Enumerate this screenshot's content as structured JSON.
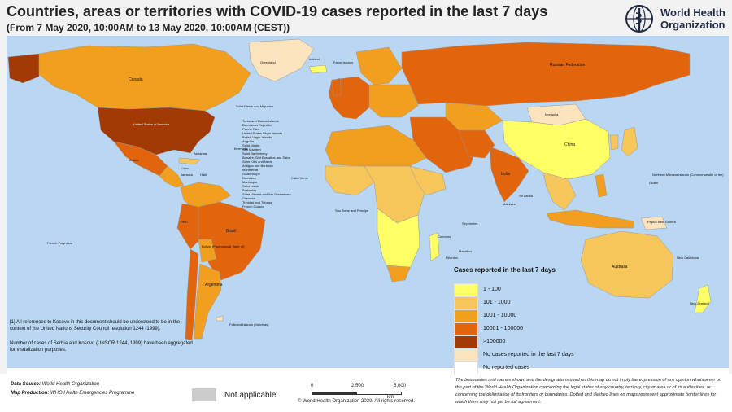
{
  "header": {
    "title": "Countries, areas or territories with COVID-19 cases reported in the last 7 days",
    "subtitle": "(From 7 May 2020, 10:00AM  to 13 May 2020, 10:00AM (CEST))"
  },
  "logo": {
    "line1": "World Health",
    "line2": "Organization"
  },
  "colors": {
    "ocean": "#b9d6f2",
    "range_1_100": "#ffff66",
    "range_101_1000": "#f7c65a",
    "range_1001_10000": "#f29e1f",
    "range_10001_100000": "#e2640c",
    "range_over_100000": "#a33a06",
    "no_reported_cases_7d": "#fbe3bd",
    "no_reported_cases": "#ffffff",
    "not_applicable": "#cccccc"
  },
  "map_labels": {
    "greenland": "Greenland",
    "canada": "Canada",
    "usa": "United States of America",
    "mexico": "Mexico",
    "russia": "Russian Federation",
    "mongolia": "Mongolia",
    "china": "China",
    "india": "India",
    "brazil": "Brazil",
    "argentina": "Argentina",
    "peru": "Peru",
    "bolivia": "Bolivia (Plurinational State of)",
    "australia": "Australia",
    "new_zealand": "New Zealand",
    "iceland": "Iceland",
    "faroe": "Faroe Islands",
    "saint_pierre": "Saint Pierre and Miquelon",
    "french_polynesia": "French Polynesia",
    "falkland": "Falkland Islands (Malvinas)",
    "nmi": "Northern Mariana Islands (Commonwealth of the)",
    "guam": "Guam",
    "png": "Papua New Guinea",
    "new_caledonia": "New Caledonia",
    "cabo_verde": "Cabo Verde",
    "sao_tome": "Sao Tome and Principe",
    "seychelles": "Seychelles",
    "comoros": "Comoros",
    "mauritius": "Mauritius",
    "reunion": "Réunion",
    "maldives": "Maldives",
    "sri_lanka": "Sri Lanka",
    "bermuda": "Bermuda",
    "bahamas": "Bahamas",
    "cuba": "Cuba",
    "jamaica": "Jamaica",
    "haiti": "Haiti",
    "caribbean_list": "Turks and Caicos Islands\nDominican Republic\nPuerto Rico\nUnited States Virgin Islands\nBritish Virgin Islands\nAnguilla\nSaint Martin\nSint Maarten\nSaint Barthélemy\nBonaire, Sint Eustatius and Saba\nSaint Kitts and Nevis\nAntigua and Barbuda\nMontserrat\nGuadeloupe\nDominica\nMartinique\nSaint Lucia\nBarbados\nSaint Vincent and the Grenadines\nGrenada\nTrinidad and Tobago\nFrench Guiana"
  },
  "notes": {
    "kosovo": "[1] All references to Kosovo in this document should be understood to be in the context of the United Nations Security Council resolution 1244 (1999).",
    "serbia": "Number of cases of Serbia and Kosovo (UNSCR 1244, 1999) have been aggregated for visualization purposes."
  },
  "legend": {
    "title": "Cases reported in the last 7 days",
    "items": [
      {
        "label": "1 - 100",
        "color": "#ffff66"
      },
      {
        "label": "101 - 1000",
        "color": "#f7c65a"
      },
      {
        "label": "1001 - 10000",
        "color": "#f29e1f"
      },
      {
        "label": "10001 - 100000",
        "color": "#e2640c"
      },
      {
        "label": ">100000",
        "color": "#a33a06"
      },
      {
        "label": "No cases reported in the last 7 days",
        "color": "#fbe3bd"
      },
      {
        "label": "No reported cases",
        "color": "#ffffff"
      }
    ]
  },
  "footer": {
    "data_source_label": "Data Source:",
    "data_source_value": "World Health Organization",
    "map_production_label": "Map Production:",
    "map_production_value": "WHO Health Emergencies Programme",
    "not_applicable": "Not applicable",
    "scale_ticks": [
      "0",
      "2,500",
      "5,000"
    ],
    "scale_unit": "km",
    "copyright": "© World Health Organization  2020.  All rights reserved.",
    "disclaimer": "The boundaries and names shown and the designations used on this map do not imply the expression of any opinion whatsoever on the part of the World Health Organization concerning the legal status of any country, territory, city or area or of its authorities, or concerning the delimitation of its frontiers or boundaries. Dotted and dashed lines on maps represent approximate border lines for which there may not yet be full agreement."
  }
}
